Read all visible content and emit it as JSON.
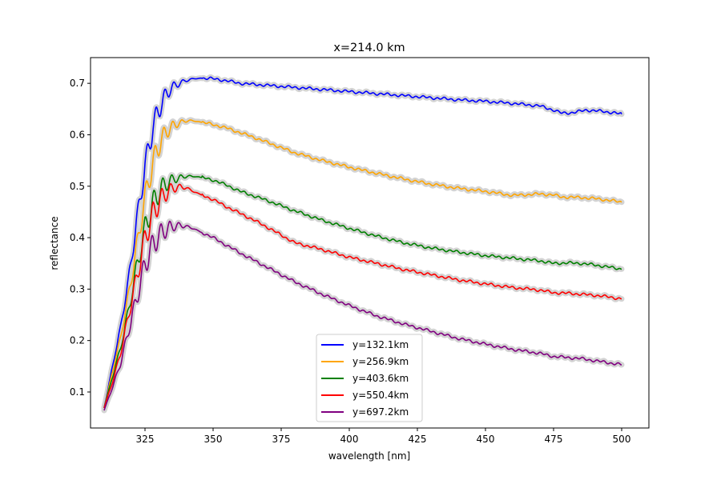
{
  "chart_data": {
    "type": "line",
    "title": "x=214.0 km",
    "xlabel": "wavelength [nm]",
    "ylabel": "reflectance",
    "xlim": [
      305,
      510
    ],
    "ylim": [
      0.03,
      0.75
    ],
    "xticks": [
      325,
      350,
      375,
      400,
      425,
      450,
      475,
      500
    ],
    "yticks": [
      0.1,
      0.2,
      0.3,
      0.4,
      0.5,
      0.6,
      0.7
    ],
    "grid": false,
    "legend_position": "bottom-center",
    "uncertainty_band_color": "#d3d3d3",
    "series": [
      {
        "name": "y=132.1km",
        "color": "#0000ff",
        "x": [
          310,
          313,
          316,
          319,
          322,
          325,
          328,
          331,
          334,
          337,
          340,
          343,
          346,
          350,
          355,
          360,
          365,
          370,
          375,
          380,
          390,
          400,
          410,
          420,
          430,
          440,
          450,
          460,
          470,
          475,
          478,
          482,
          487,
          492,
          497,
          500
        ],
        "y": [
          0.07,
          0.15,
          0.23,
          0.33,
          0.45,
          0.56,
          0.64,
          0.68,
          0.7,
          0.705,
          0.708,
          0.71,
          0.71,
          0.709,
          0.705,
          0.7,
          0.698,
          0.696,
          0.694,
          0.692,
          0.688,
          0.684,
          0.68,
          0.676,
          0.672,
          0.668,
          0.665,
          0.661,
          0.656,
          0.648,
          0.642,
          0.643,
          0.648,
          0.646,
          0.643,
          0.64
        ]
      },
      {
        "name": "y=256.9km",
        "color": "#ffa500",
        "x": [
          310,
          313,
          316,
          319,
          322,
          325,
          328,
          331,
          334,
          337,
          340,
          343,
          346,
          350,
          355,
          360,
          365,
          370,
          375,
          380,
          390,
          400,
          410,
          420,
          430,
          440,
          450,
          460,
          470,
          475,
          478,
          485,
          490,
          495,
          500
        ],
        "y": [
          0.07,
          0.14,
          0.21,
          0.3,
          0.4,
          0.5,
          0.57,
          0.61,
          0.625,
          0.628,
          0.63,
          0.628,
          0.624,
          0.62,
          0.613,
          0.604,
          0.595,
          0.585,
          0.575,
          0.565,
          0.55,
          0.537,
          0.525,
          0.514,
          0.504,
          0.496,
          0.49,
          0.482,
          0.485,
          0.483,
          0.479,
          0.478,
          0.476,
          0.473,
          0.469
        ]
      },
      {
        "name": "y=403.6km",
        "color": "#008000",
        "x": [
          310,
          313,
          316,
          319,
          322,
          325,
          328,
          331,
          334,
          337,
          340,
          343,
          346,
          350,
          355,
          360,
          365,
          370,
          375,
          380,
          390,
          400,
          410,
          420,
          430,
          440,
          450,
          460,
          470,
          475,
          480,
          485,
          490,
          495,
          500
        ],
        "y": [
          0.07,
          0.13,
          0.19,
          0.27,
          0.36,
          0.44,
          0.49,
          0.515,
          0.522,
          0.522,
          0.522,
          0.52,
          0.517,
          0.512,
          0.502,
          0.49,
          0.481,
          0.472,
          0.462,
          0.452,
          0.434,
          0.418,
          0.403,
          0.39,
          0.38,
          0.372,
          0.365,
          0.36,
          0.355,
          0.35,
          0.351,
          0.35,
          0.347,
          0.343,
          0.339
        ]
      },
      {
        "name": "y=550.4km",
        "color": "#ff0000",
        "x": [
          310,
          313,
          316,
          319,
          322,
          325,
          328,
          331,
          334,
          337,
          340,
          343,
          346,
          350,
          355,
          360,
          365,
          370,
          375,
          380,
          390,
          400,
          410,
          420,
          430,
          440,
          450,
          460,
          470,
          475,
          480,
          485,
          490,
          495,
          500
        ],
        "y": [
          0.07,
          0.12,
          0.18,
          0.26,
          0.34,
          0.42,
          0.47,
          0.495,
          0.505,
          0.505,
          0.5,
          0.49,
          0.483,
          0.474,
          0.46,
          0.447,
          0.434,
          0.42,
          0.405,
          0.39,
          0.377,
          0.362,
          0.35,
          0.338,
          0.328,
          0.318,
          0.31,
          0.303,
          0.298,
          0.293,
          0.292,
          0.29,
          0.288,
          0.285,
          0.281
        ]
      },
      {
        "name": "y=697.2km",
        "color": "#800080",
        "x": [
          310,
          313,
          316,
          319,
          322,
          325,
          328,
          331,
          334,
          337,
          340,
          343,
          346,
          350,
          355,
          360,
          365,
          370,
          375,
          380,
          390,
          400,
          410,
          420,
          430,
          440,
          450,
          460,
          470,
          475,
          480,
          485,
          490,
          495,
          500
        ],
        "y": [
          0.065,
          0.11,
          0.16,
          0.23,
          0.3,
          0.37,
          0.41,
          0.428,
          0.432,
          0.43,
          0.425,
          0.418,
          0.41,
          0.4,
          0.385,
          0.37,
          0.356,
          0.342,
          0.328,
          0.314,
          0.29,
          0.268,
          0.248,
          0.232,
          0.218,
          0.204,
          0.193,
          0.183,
          0.175,
          0.169,
          0.167,
          0.165,
          0.161,
          0.157,
          0.153
        ]
      }
    ]
  }
}
